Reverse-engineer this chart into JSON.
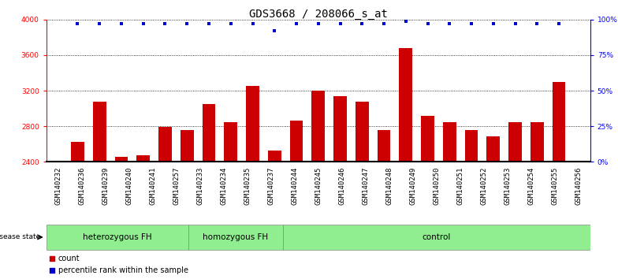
{
  "title": "GDS3668 / 208066_s_at",
  "samples": [
    "GSM140232",
    "GSM140236",
    "GSM140239",
    "GSM140240",
    "GSM140241",
    "GSM140257",
    "GSM140233",
    "GSM140234",
    "GSM140235",
    "GSM140237",
    "GSM140244",
    "GSM140245",
    "GSM140246",
    "GSM140247",
    "GSM140248",
    "GSM140249",
    "GSM140250",
    "GSM140251",
    "GSM140252",
    "GSM140253",
    "GSM140254",
    "GSM140255",
    "GSM140256"
  ],
  "counts": [
    2620,
    3080,
    2460,
    2470,
    2790,
    2760,
    3050,
    2850,
    3250,
    2530,
    2860,
    3200,
    3140,
    3080,
    2760,
    3680,
    2920,
    2850,
    2760,
    2690,
    2850,
    2850,
    3300
  ],
  "percentiles": [
    97,
    97,
    97,
    97,
    97,
    97,
    97,
    97,
    97,
    92,
    97,
    97,
    97,
    97,
    97,
    99,
    97,
    97,
    97,
    97,
    97,
    97,
    97
  ],
  "group_labels": [
    "heterozygous FH",
    "homozygous FH",
    "control"
  ],
  "group_starts": [
    0,
    6,
    10
  ],
  "group_ends": [
    5,
    9,
    22
  ],
  "bar_color": "#CC0000",
  "dot_color": "#0000CC",
  "ylim_left": [
    2400,
    4000
  ],
  "ylim_right": [
    0,
    100
  ],
  "yticks_left": [
    2400,
    2800,
    3200,
    3600,
    4000
  ],
  "yticks_right": [
    0,
    25,
    50,
    75,
    100
  ],
  "grid_values": [
    2800,
    3200,
    3600
  ],
  "plot_bg_color": "#e8e8e8",
  "group_color": "#90EE90",
  "title_fontsize": 10,
  "tick_fontsize": 6.5,
  "label_fontsize": 8
}
